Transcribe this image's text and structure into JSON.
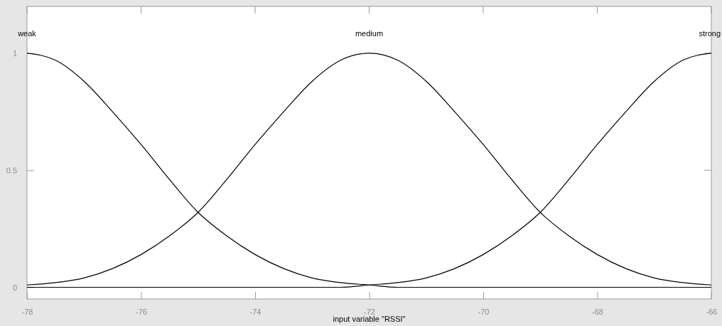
{
  "chart_data": {
    "type": "line",
    "xlabel": "input variable \"RSSI\"",
    "xlim": [
      -78,
      -66
    ],
    "xticks": [
      -78,
      -76,
      -74,
      -72,
      -70,
      -68,
      -66
    ],
    "ylim": [
      -0.05,
      1.2
    ],
    "yticks": [
      0,
      0.5,
      1
    ],
    "line_style": "solid",
    "x": [
      -78,
      -77.5,
      -77,
      -76.5,
      -76,
      -75.5,
      -75,
      -74.5,
      -74,
      -73.5,
      -73,
      -72.5,
      -72,
      -71.5,
      -71,
      -70.5,
      -70,
      -69.5,
      -69,
      -68.5,
      -68,
      -67.5,
      -67,
      -66.5,
      -66
    ],
    "series": [
      {
        "name": "weak",
        "color": "#000000",
        "values": [
          1,
          0.97,
          0.88,
          0.75,
          0.61,
          0.46,
          0.32,
          0.22,
          0.14,
          0.08,
          0.04,
          0.02,
          0.01,
          0,
          0,
          0,
          0,
          0,
          0,
          0,
          0,
          0,
          0,
          0,
          0
        ]
      },
      {
        "name": "medium",
        "color": "#000000",
        "values": [
          0.01,
          0.02,
          0.04,
          0.08,
          0.14,
          0.22,
          0.32,
          0.46,
          0.61,
          0.75,
          0.88,
          0.97,
          1,
          0.97,
          0.88,
          0.75,
          0.61,
          0.46,
          0.32,
          0.22,
          0.14,
          0.08,
          0.04,
          0.02,
          0.01
        ]
      },
      {
        "name": "strong",
        "color": "#000000",
        "values": [
          0,
          0,
          0,
          0,
          0,
          0,
          0,
          0,
          0,
          0,
          0,
          0,
          0.01,
          0.02,
          0.04,
          0.08,
          0.14,
          0.22,
          0.32,
          0.46,
          0.61,
          0.75,
          0.88,
          0.97,
          1
        ]
      }
    ]
  }
}
